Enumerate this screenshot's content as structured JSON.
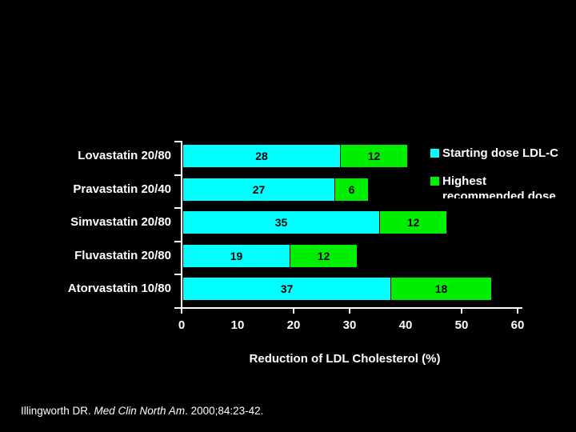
{
  "chart_data": {
    "type": "bar",
    "orientation": "horizontal",
    "stacked": true,
    "categories": [
      "Lovastatin 20/80",
      "Pravastatin 20/40",
      "Simvastatin 20/80",
      "Fluvastatin 20/80",
      "Atorvastatin 10/80"
    ],
    "series": [
      {
        "name": "Starting dose LDL-C",
        "color": "#00FFFF",
        "values": [
          28,
          27,
          35,
          19,
          37
        ]
      },
      {
        "name": "Highest recommended dose",
        "color": "#00EE00",
        "values": [
          12,
          6,
          12,
          12,
          18
        ]
      }
    ],
    "xlabel": "Reduction of LDL Cholesterol (%)",
    "xlim": [
      0,
      60
    ],
    "xticks": [
      0,
      10,
      20,
      30,
      40,
      50,
      60
    ],
    "xtick_marks": [
      0,
      20,
      30,
      50,
      60
    ],
    "grid": false,
    "legend_position": "top-right",
    "value_labels": "inside",
    "value_label_color": "#000000"
  },
  "legend": {
    "items": [
      {
        "color": "#00FFFF",
        "line1": "Starting dose LDL-C",
        "line2": ""
      },
      {
        "color": "#00EE00",
        "line1": "Highest",
        "line2": "recommended dose"
      }
    ]
  },
  "footer": {
    "citation_author": "Illingworth DR. ",
    "citation_journal": "Med Clin North Am",
    "citation_rest": ". 2000;84:23-42."
  },
  "colors": {
    "background": "#000000",
    "axis": "#FFFFFF",
    "label_text": "#FFFFFF",
    "bar_cyan": "#00FFFF",
    "bar_green": "#00EE00"
  }
}
